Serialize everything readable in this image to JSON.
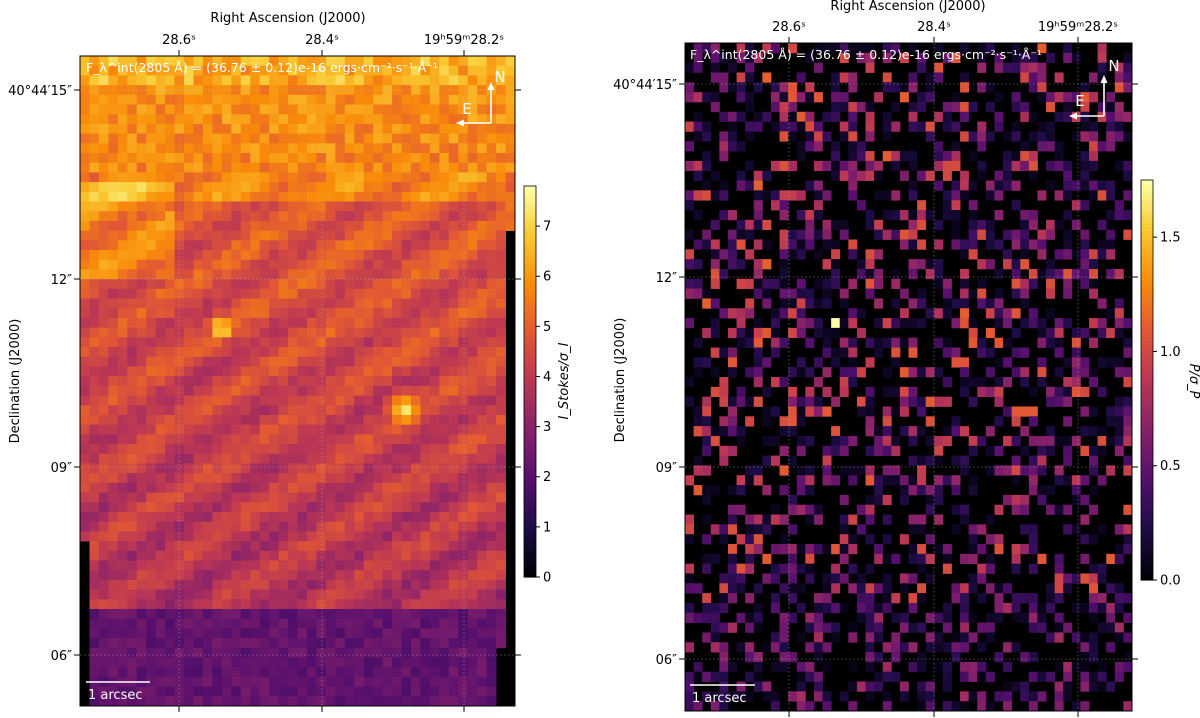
{
  "chart_data": [
    {
      "type": "heatmap",
      "xlabel": "Right Ascension (J2000)",
      "ylabel": "Declination (J2000)",
      "x_ticks": [
        "28.6ˢ",
        "28.4ˢ",
        "19ʰ59ᵐ28.2ˢ"
      ],
      "y_ticks": [
        "40°44′15″",
        "12″",
        "09″",
        "06″"
      ],
      "flux_annotation": "F_λ^int(2805 Å) = (36.76 ± 0.12)e-16 ergs·cm⁻²·s⁻¹·Å⁻¹",
      "compass": {
        "north": "N",
        "east": "E"
      },
      "scalebar_label": "1 arcsec",
      "colorbar": {
        "label": "I_Stokes/σ_I",
        "ticks": [
          "0",
          "1",
          "2",
          "3",
          "4",
          "5",
          "6",
          "7"
        ],
        "range": [
          0,
          7.8
        ],
        "colormap": "inferno"
      },
      "grid": {
        "cols": 46,
        "rows": 67
      },
      "features": {
        "bright_source_value": 7.6
      }
    },
    {
      "type": "heatmap",
      "xlabel": "Right Ascension (J2000)",
      "ylabel": "Declination (J2000)",
      "x_ticks": [
        "28.6ˢ",
        "28.4ˢ",
        "19ʰ59ᵐ28.2ˢ"
      ],
      "y_ticks": [
        "40°44′15″",
        "12″",
        "09″",
        "06″"
      ],
      "flux_annotation": "F_λ^int(2805 Å) = (36.76 ± 0.12)e-16 ergs·cm⁻²·s⁻¹·Å⁻¹",
      "compass": {
        "north": "N",
        "east": "E"
      },
      "scalebar_label": "1 arcsec",
      "colorbar": {
        "label": "P/σ_P",
        "ticks": [
          "0.0",
          "0.5",
          "1.0",
          "1.5"
        ],
        "range": [
          0,
          1.75
        ],
        "colormap": "inferno"
      },
      "grid": {
        "cols": 52,
        "rows": 68
      },
      "features": {
        "brightest_pixel_value": 1.75
      }
    }
  ]
}
